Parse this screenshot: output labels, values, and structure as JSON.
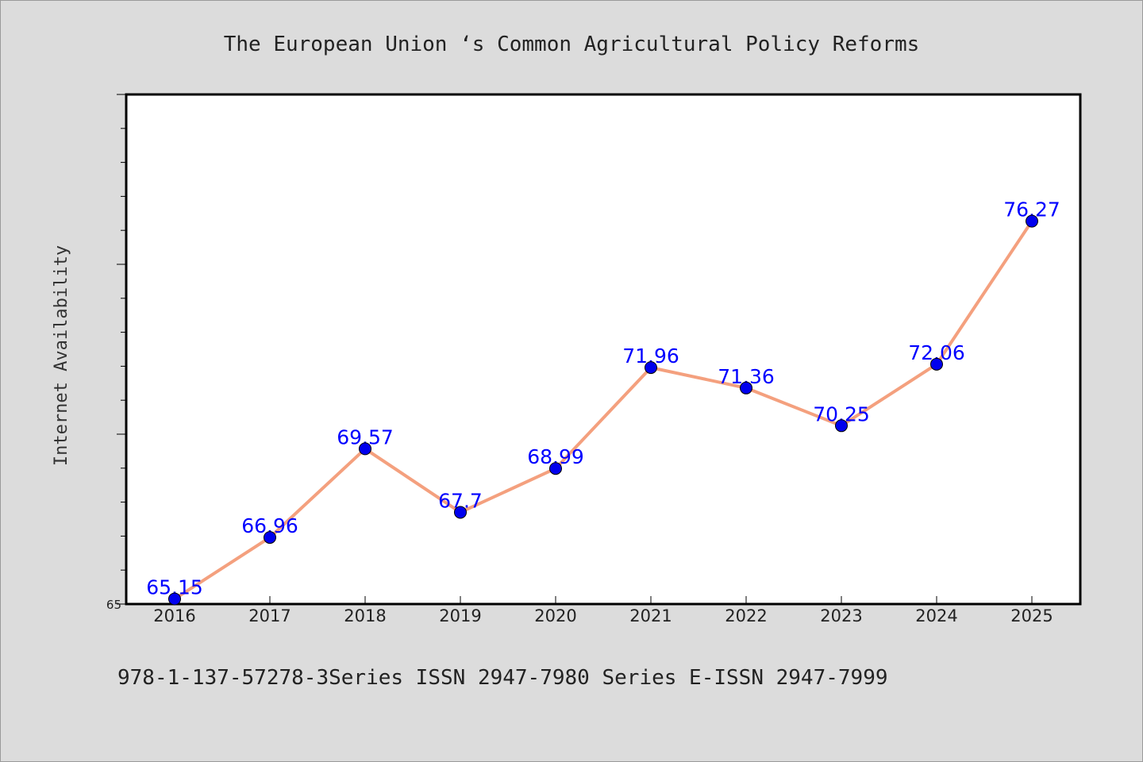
{
  "chart_data": {
    "type": "line",
    "title": "The European Union ‘s Common Agricultural Policy Reforms",
    "ylabel": "Internet Availability",
    "xlabel": "",
    "categories": [
      "2016",
      "2017",
      "2018",
      "2019",
      "2020",
      "2021",
      "2022",
      "2023",
      "2024",
      "2025"
    ],
    "series": [
      {
        "values": [
          65.15,
          66.96,
          69.57,
          67.7,
          68.99,
          71.96,
          71.36,
          70.25,
          72.06,
          76.27
        ],
        "labels": [
          "65.15",
          "66.96",
          "69.57",
          "67.7",
          "68.99",
          "71.96",
          "71.36",
          "70.25",
          "72.06",
          "76.27"
        ],
        "line_color": "#f4a07e",
        "marker_color": "#0000ee",
        "label_color": "#0000ff"
      }
    ],
    "ylim": [
      65,
      80
    ],
    "ytick_labels": [
      "65"
    ],
    "grid": false,
    "legend": "none"
  },
  "footer": {
    "text": "978-1-137-57278-3Series ISSN 2947-7980 Series E-ISSN 2947-7999"
  },
  "colors": {
    "background": "#dcdcdc",
    "plot_background": "#ffffff",
    "axis": "#000000"
  }
}
